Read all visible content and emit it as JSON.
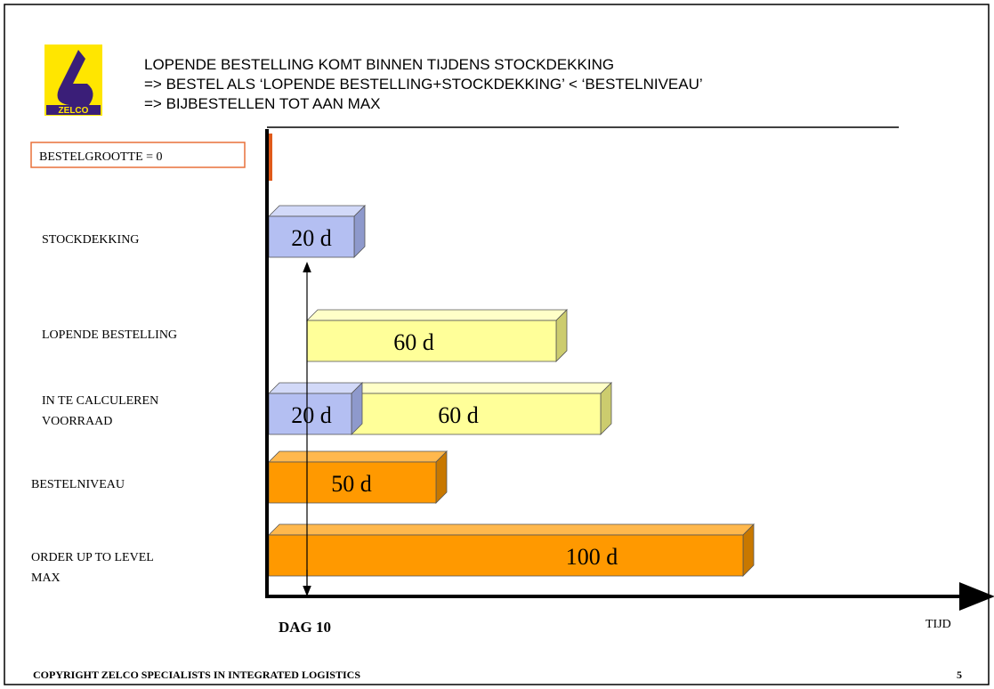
{
  "header": {
    "logo": "ZELCO",
    "title_lines": [
      "LOPENDE BESTELLING KOMT BINNEN TIJDENS STOCKDEKKING",
      "=> BESTEL ALS ‘LOPENDE BESTELLING+STOCKDEKKING’ < ‘BESTELNIVEAU’",
      "=> BIJBESTELLEN TOT AAN MAX"
    ]
  },
  "note": "BESTELGROOTTE = 0",
  "rows": [
    {
      "label": [
        "STOCKDEKKING"
      ],
      "bars": [
        "20 d"
      ]
    },
    {
      "label": [
        "LOPENDE BESTELLING"
      ],
      "bars": [
        "60 d"
      ]
    },
    {
      "label": [
        "IN TE CALCULEREN",
        "VOORRAAD"
      ],
      "bars": [
        "20 d",
        "60 d"
      ]
    },
    {
      "label": [
        "BESTELNIVEAU"
      ],
      "bars": [
        "50 d"
      ]
    },
    {
      "label": [
        "ORDER UP TO LEVEL",
        "MAX"
      ],
      "bars": [
        "100 d"
      ]
    }
  ],
  "axis": {
    "marker": "DAG 10",
    "x_label": "TIJD"
  },
  "footer": {
    "copyright": "COPYRIGHT  ZELCO  SPECIALISTS IN INTEGRATED LOGISTICS",
    "page": "5"
  }
}
